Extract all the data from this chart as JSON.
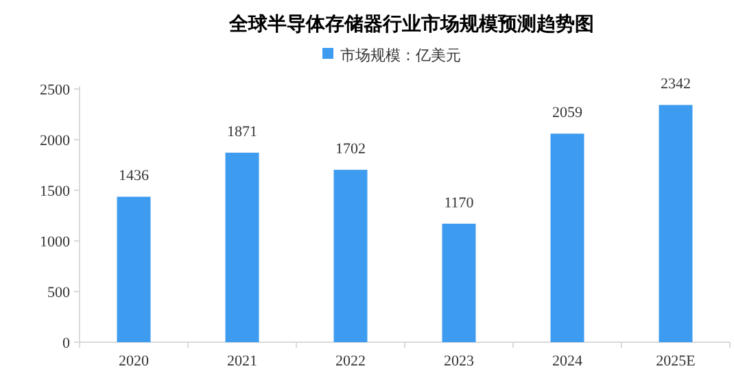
{
  "chart_data": {
    "type": "bar",
    "title": "全球半导体存储器行业市场规模预测趋势图",
    "categories": [
      "2020",
      "2021",
      "2022",
      "2023",
      "2024",
      "2025E"
    ],
    "series": [
      {
        "name": "市场规模：亿美元",
        "color": "#3d9cf0",
        "values": [
          1436,
          1871,
          1702,
          1170,
          2059,
          2342
        ]
      }
    ],
    "ylim": [
      0,
      2500
    ],
    "yticks": [
      0,
      500,
      1000,
      1500,
      2000,
      2500
    ],
    "data_labels": true,
    "legend": "top"
  }
}
